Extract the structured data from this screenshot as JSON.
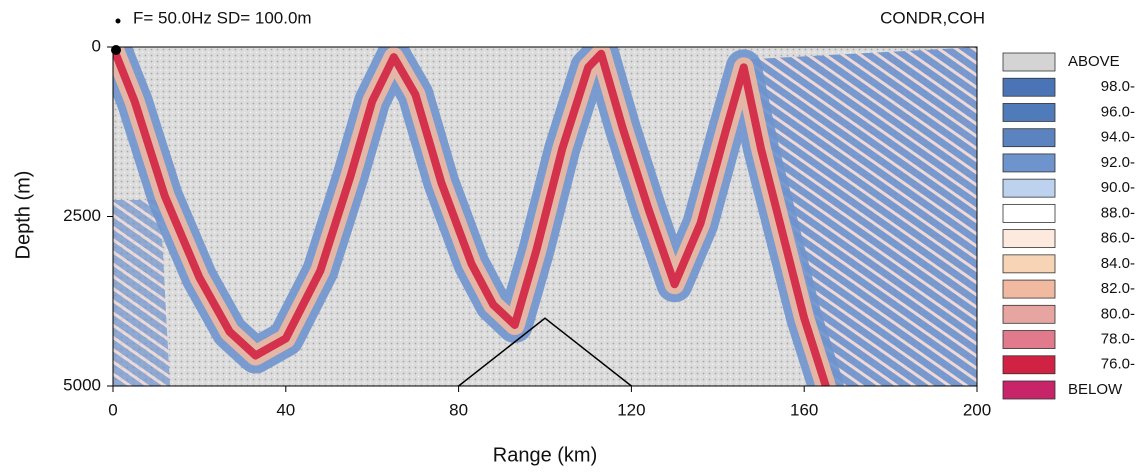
{
  "chart_data": {
    "type": "field",
    "title": "F= 50.0Hz SD= 100.0m",
    "subtitle": "CONDR,COH",
    "xlabel": "Range (km)",
    "ylabel": "Depth (m)",
    "xlim": [
      0,
      200
    ],
    "xticks": [
      0,
      40,
      80,
      120,
      160,
      200
    ],
    "ylim": [
      5000,
      0
    ],
    "yticks": [
      0,
      2500,
      5000
    ],
    "ray": {
      "x": [
        0,
        5,
        12,
        20,
        27,
        33,
        40,
        48,
        55,
        60,
        65,
        70,
        76,
        83,
        88,
        93,
        98,
        104,
        110,
        113,
        118,
        124,
        130,
        136,
        142,
        146,
        150,
        156,
        160,
        165
      ],
      "y": [
        0,
        800,
        2200,
        3400,
        4200,
        4550,
        4300,
        3300,
        1900,
        800,
        150,
        700,
        2000,
        3200,
        3800,
        4100,
        3000,
        1500,
        300,
        100,
        1200,
        2400,
        3500,
        2600,
        1200,
        300,
        1500,
        3000,
        4000,
        5000
      ]
    },
    "bathymetry": {
      "x": [
        80,
        100,
        120
      ],
      "y": [
        5000,
        4000,
        5000
      ]
    },
    "legend": [
      {
        "label": "ABOVE",
        "color": "#d4d4d4"
      },
      {
        "value": 98,
        "label": "98.0-",
        "color": "#4a74b5"
      },
      {
        "value": 96,
        "label": "96.0-",
        "color": "#507bba"
      },
      {
        "value": 94,
        "label": "94.0-",
        "color": "#5a83c0"
      },
      {
        "value": 92,
        "label": "92.0-",
        "color": "#6e93cd"
      },
      {
        "value": 90,
        "label": "90.0-",
        "color": "#bcd2ef"
      },
      {
        "value": 88,
        "label": "88.0-",
        "color": "#ffffff"
      },
      {
        "value": 86,
        "label": "86.0-",
        "color": "#fde9dd"
      },
      {
        "value": 84,
        "label": "84.0-",
        "color": "#f8d4b6"
      },
      {
        "value": 82,
        "label": "82.0-",
        "color": "#f0b9a0"
      },
      {
        "value": 80,
        "label": "80.0-",
        "color": "#e7a5a2"
      },
      {
        "value": 78,
        "label": "78.0-",
        "color": "#e07a8c"
      },
      {
        "value": 76,
        "label": "76.0-",
        "color": "#d02242"
      },
      {
        "label": "BELOW",
        "color": "#c8246a"
      }
    ]
  }
}
